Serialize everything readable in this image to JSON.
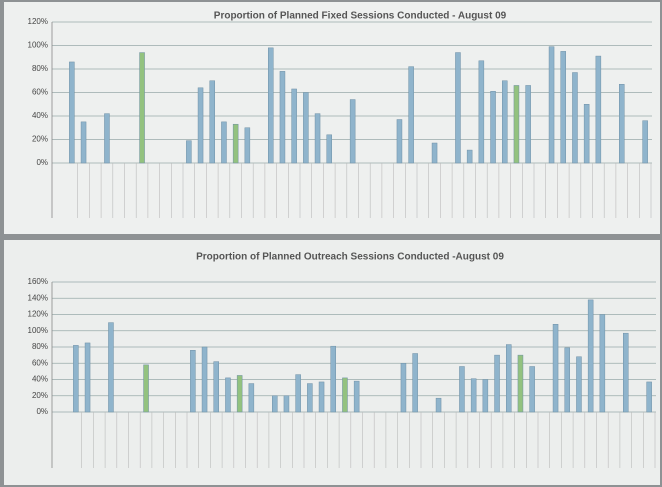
{
  "chart_data": [
    {
      "type": "bar",
      "title": "Proportion of Planned Fixed Sessions Conducted  - August 09",
      "categories": [
        null,
        null,
        null,
        null,
        null,
        null,
        null,
        null,
        null,
        null,
        null,
        null,
        null,
        null,
        null,
        null,
        null,
        null,
        null,
        null,
        null,
        null,
        null,
        null,
        null,
        null,
        null,
        null,
        null,
        null,
        null,
        null,
        null,
        null,
        null,
        null,
        null,
        null,
        null,
        null,
        null,
        null,
        null,
        null,
        null,
        null,
        null,
        null,
        null,
        null
      ],
      "values": [
        86,
        35,
        null,
        42,
        null,
        null,
        94,
        null,
        null,
        null,
        19,
        64,
        70,
        35,
        33,
        30,
        null,
        98,
        78,
        63,
        60,
        42,
        24,
        null,
        54,
        null,
        null,
        null,
        37,
        82,
        null,
        17,
        null,
        94,
        11,
        87,
        61,
        70,
        66,
        66,
        null,
        99,
        95,
        77,
        50,
        91,
        null,
        67,
        null,
        36
      ],
      "colors": [
        "#8fb4cc",
        "#8fb4cc",
        "#8fb4cc",
        "#8fb4cc",
        "#8fb4cc",
        "#8fb4cc",
        "#93c27f",
        "#8fb4cc",
        "#8fb4cc",
        "#8fb4cc",
        "#8fb4cc",
        "#8fb4cc",
        "#8fb4cc",
        "#8fb4cc",
        "#93c27f",
        "#8fb4cc",
        "#8fb4cc",
        "#8fb4cc",
        "#8fb4cc",
        "#8fb4cc",
        "#8fb4cc",
        "#8fb4cc",
        "#8fb4cc",
        "#8fb4cc",
        "#8fb4cc",
        "#8fb4cc",
        "#8fb4cc",
        "#8fb4cc",
        "#8fb4cc",
        "#8fb4cc",
        "#8fb4cc",
        "#8fb4cc",
        "#8fb4cc",
        "#8fb4cc",
        "#8fb4cc",
        "#8fb4cc",
        "#8fb4cc",
        "#8fb4cc",
        "#93c27f",
        "#8fb4cc",
        "#8fb4cc",
        "#8fb4cc",
        "#8fb4cc",
        "#8fb4cc",
        "#8fb4cc",
        "#8fb4cc",
        "#8fb4cc",
        "#8fb4cc",
        "#8fb4cc",
        "#8fb4cc"
      ],
      "ylim": [
        0,
        120
      ],
      "yticks": [
        {
          "value": 0,
          "label": "0%"
        },
        {
          "value": 20,
          "label": "20%"
        },
        {
          "value": 40,
          "label": "40%"
        },
        {
          "value": 60,
          "label": "60%"
        },
        {
          "value": 80,
          "label": "80%"
        },
        {
          "value": 100,
          "label": "100%"
        },
        {
          "value": 120,
          "label": "120%"
        }
      ],
      "grid": true
    },
    {
      "type": "bar",
      "title": "Proportion of Planned Outreach Sessions Conducted -August 09",
      "categories": [
        null,
        null,
        null,
        null,
        null,
        null,
        null,
        null,
        null,
        null,
        null,
        null,
        null,
        null,
        null,
        null,
        null,
        null,
        null,
        null,
        null,
        null,
        null,
        null,
        null,
        null,
        null,
        null,
        null,
        null,
        null,
        null,
        null,
        null,
        null,
        null,
        null,
        null,
        null,
        null,
        null,
        null,
        null,
        null,
        null,
        null,
        null,
        null,
        null,
        null
      ],
      "values": [
        82,
        85,
        null,
        110,
        null,
        null,
        58,
        null,
        null,
        null,
        76,
        80,
        62,
        42,
        45,
        35,
        null,
        20,
        20,
        46,
        35,
        37,
        81,
        42,
        38,
        null,
        null,
        null,
        60,
        72,
        null,
        17,
        null,
        56,
        41,
        40,
        70,
        83,
        70,
        56,
        null,
        108,
        79,
        68,
        138,
        120,
        null,
        97,
        null,
        37
      ],
      "colors": [
        "#8fb4cc",
        "#8fb4cc",
        "#8fb4cc",
        "#8fb4cc",
        "#8fb4cc",
        "#8fb4cc",
        "#93c27f",
        "#8fb4cc",
        "#8fb4cc",
        "#8fb4cc",
        "#8fb4cc",
        "#8fb4cc",
        "#8fb4cc",
        "#8fb4cc",
        "#93c27f",
        "#8fb4cc",
        "#8fb4cc",
        "#8fb4cc",
        "#8fb4cc",
        "#8fb4cc",
        "#8fb4cc",
        "#8fb4cc",
        "#8fb4cc",
        "#93c27f",
        "#8fb4cc",
        "#8fb4cc",
        "#8fb4cc",
        "#8fb4cc",
        "#8fb4cc",
        "#8fb4cc",
        "#8fb4cc",
        "#8fb4cc",
        "#8fb4cc",
        "#8fb4cc",
        "#8fb4cc",
        "#8fb4cc",
        "#8fb4cc",
        "#8fb4cc",
        "#93c27f",
        "#8fb4cc",
        "#8fb4cc",
        "#8fb4cc",
        "#8fb4cc",
        "#8fb4cc",
        "#8fb4cc",
        "#8fb4cc",
        "#8fb4cc",
        "#8fb4cc",
        "#8fb4cc",
        "#8fb4cc"
      ],
      "ylim": [
        0,
        160
      ],
      "yticks": [
        {
          "value": 0,
          "label": "0%"
        },
        {
          "value": 20,
          "label": "20%"
        },
        {
          "value": 40,
          "label": "40%"
        },
        {
          "value": 60,
          "label": "60%"
        },
        {
          "value": 80,
          "label": "80%"
        },
        {
          "value": 100,
          "label": "100%"
        },
        {
          "value": 120,
          "label": "120%"
        },
        {
          "value": 140,
          "label": "140%"
        },
        {
          "value": 160,
          "label": "160%"
        }
      ],
      "grid": true
    }
  ]
}
